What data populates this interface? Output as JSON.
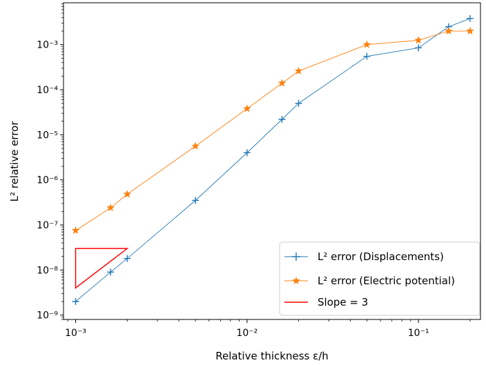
{
  "chart_data": {
    "type": "line",
    "xscale": "log",
    "yscale": "log",
    "xlabel": "Relative thickness ε/h",
    "ylabel": "L² relative error",
    "xlim": [
      0.00085,
      0.23
    ],
    "ylim": [
      8e-10,
      0.0085
    ],
    "x_ticks": [
      {
        "value": 0.001,
        "label": "10⁻³"
      },
      {
        "value": 0.01,
        "label": "10⁻²"
      },
      {
        "value": 0.1,
        "label": "10⁻¹"
      }
    ],
    "y_ticks": [
      {
        "value": 1e-09,
        "label": "10⁻⁹"
      },
      {
        "value": 1e-08,
        "label": "10⁻⁸"
      },
      {
        "value": 1e-07,
        "label": "10⁻⁷"
      },
      {
        "value": 1e-06,
        "label": "10⁻⁶"
      },
      {
        "value": 1e-05,
        "label": "10⁻⁵"
      },
      {
        "value": 0.0001,
        "label": "10⁻⁴"
      },
      {
        "value": 0.001,
        "label": "10⁻³"
      }
    ],
    "grid": false,
    "legend_position": "lower-right",
    "series": [
      {
        "name": "L² error (Displacements)",
        "color": "#1f77b4",
        "marker": "plus",
        "x": [
          0.001,
          0.0016,
          0.002,
          0.005,
          0.01,
          0.016,
          0.02,
          0.05,
          0.1,
          0.15,
          0.2
        ],
        "y": [
          2e-09,
          9e-09,
          1.8e-08,
          3.5e-07,
          4e-06,
          2.2e-05,
          5e-05,
          0.00055,
          0.00085,
          0.0025,
          0.0038
        ]
      },
      {
        "name": "L² error (Electric potential)",
        "color": "#ff7f0e",
        "marker": "star",
        "x": [
          0.001,
          0.0016,
          0.002,
          0.005,
          0.01,
          0.016,
          0.02,
          0.05,
          0.1,
          0.15,
          0.2
        ],
        "y": [
          7.5e-08,
          2.4e-07,
          4.8e-07,
          5.6e-06,
          3.8e-05,
          0.00014,
          0.00026,
          0.001,
          0.00125,
          0.002,
          0.002
        ]
      }
    ],
    "slope_triangle": {
      "name": "Slope = 3",
      "color": "#ff0000",
      "points": [
        [
          0.001,
          4e-09
        ],
        [
          0.001,
          3e-08
        ],
        [
          0.002,
          3e-08
        ]
      ]
    }
  }
}
